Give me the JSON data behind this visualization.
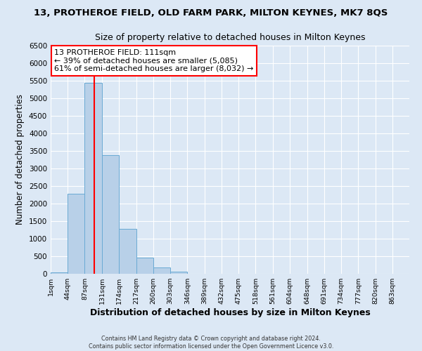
{
  "title": "13, PROTHEROE FIELD, OLD FARM PARK, MILTON KEYNES, MK7 8QS",
  "subtitle": "Size of property relative to detached houses in Milton Keynes",
  "xlabel": "Distribution of detached houses by size in Milton Keynes",
  "ylabel": "Number of detached properties",
  "bin_labels": [
    "1sqm",
    "44sqm",
    "87sqm",
    "131sqm",
    "174sqm",
    "217sqm",
    "260sqm",
    "303sqm",
    "346sqm",
    "389sqm",
    "432sqm",
    "475sqm",
    "518sqm",
    "561sqm",
    "604sqm",
    "648sqm",
    "691sqm",
    "734sqm",
    "777sqm",
    "820sqm",
    "863sqm"
  ],
  "bin_edges": [
    1,
    44,
    87,
    131,
    174,
    217,
    260,
    303,
    346,
    389,
    432,
    475,
    518,
    561,
    604,
    648,
    691,
    734,
    777,
    820,
    863
  ],
  "bar_heights": [
    50,
    2280,
    5450,
    3380,
    1280,
    470,
    185,
    65,
    10,
    5,
    3,
    2,
    1,
    1,
    0,
    0,
    0,
    0,
    0,
    0
  ],
  "bar_color": "#b8d0e8",
  "bar_edgecolor": "#6aaad4",
  "vline_x": 111,
  "vline_color": "red",
  "annotation_line1": "13 PROTHEROE FIELD: 111sqm",
  "annotation_line2": "← 39% of detached houses are smaller (5,085)",
  "annotation_line3": "61% of semi-detached houses are larger (8,032) →",
  "ylim": [
    0,
    6500
  ],
  "yticks": [
    0,
    500,
    1000,
    1500,
    2000,
    2500,
    3000,
    3500,
    4000,
    4500,
    5000,
    5500,
    6000,
    6500
  ],
  "background_color": "#dce8f5",
  "grid_color": "white",
  "footer_line1": "Contains HM Land Registry data © Crown copyright and database right 2024.",
  "footer_line2": "Contains public sector information licensed under the Open Government Licence v3.0."
}
